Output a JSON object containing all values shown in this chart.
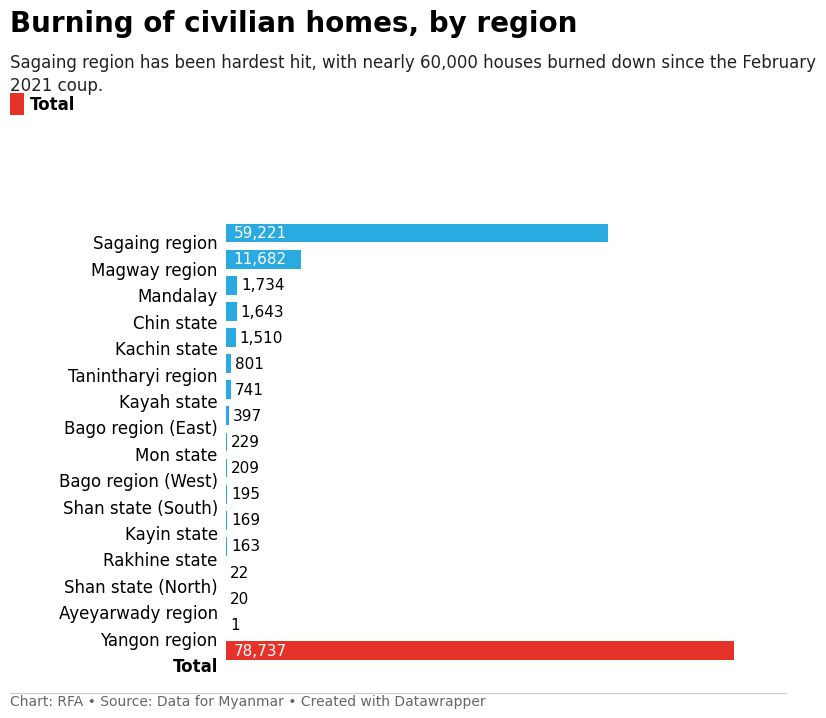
{
  "title": "Burning of civilian homes, by region",
  "subtitle": "Sagaing region has been hardest hit, with nearly 60,000 houses burned down since the February\n2021 coup.",
  "legend_label": "Total",
  "categories": [
    "Sagaing region",
    "Magway region",
    "Mandalay",
    "Chin state",
    "Kachin state",
    "Tanintharyi region",
    "Kayah state",
    "Bago region (East)",
    "Mon state",
    "Bago region (West)",
    "Shan state (South)",
    "Kayin state",
    "Rakhine state",
    "Shan state (North)",
    "Ayeyarwady region",
    "Yangon region",
    "Total"
  ],
  "values": [
    59221,
    11682,
    1734,
    1643,
    1510,
    801,
    741,
    397,
    229,
    209,
    195,
    169,
    163,
    22,
    20,
    1,
    78737
  ],
  "bar_color_main": "#29abe2",
  "bar_color_total": "#e63329",
  "label_color_main": "#000000",
  "label_color_total": "#ffffff",
  "background_color": "#ffffff",
  "footer": "Chart: RFA • Source: Data for Myanmar • Created with Datawrapper",
  "xlim_max": 85000,
  "title_fontsize": 20,
  "subtitle_fontsize": 12,
  "category_fontsize": 12,
  "value_fontsize": 11,
  "footer_fontsize": 10
}
